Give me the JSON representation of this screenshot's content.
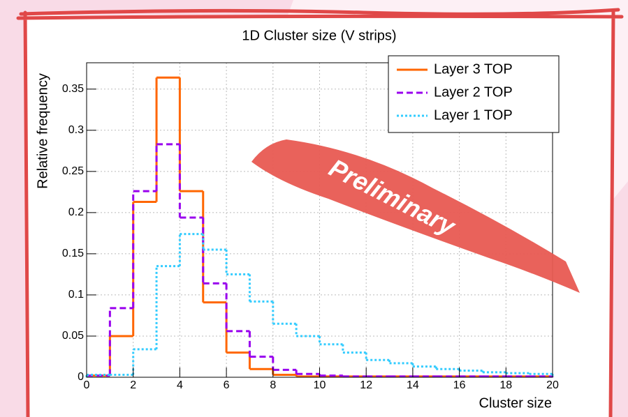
{
  "chart_data": {
    "type": "histogram",
    "title": "1D Cluster size (V strips)",
    "x_label": "Cluster size",
    "y_label": "Relative frequency",
    "annotation": "Preliminary",
    "bins": [
      0,
      1,
      2,
      3,
      4,
      5,
      6,
      7,
      8,
      9,
      10,
      11,
      12,
      13,
      14,
      15,
      16,
      17,
      18,
      19,
      20
    ],
    "series": [
      {
        "name": "Layer 3 TOP",
        "color": "#ff6600",
        "dash": "solid",
        "values": [
          0.002,
          0.05,
          0.213,
          0.364,
          0.226,
          0.091,
          0.03,
          0.01,
          0.003,
          0.001,
          0.001,
          0.001,
          0.001,
          0.001,
          0.001,
          0.001,
          0.001,
          0.001,
          0.001,
          0.001
        ]
      },
      {
        "name": "Layer 2 TOP",
        "color": "#9900ee",
        "dash": "dashed",
        "values": [
          0.002,
          0.084,
          0.226,
          0.283,
          0.194,
          0.114,
          0.056,
          0.025,
          0.009,
          0.004,
          0.002,
          0.001,
          0.001,
          0.001,
          0.001,
          0.001,
          0.001,
          0.001,
          0.001,
          0.001
        ]
      },
      {
        "name": "Layer 1 TOP",
        "color": "#33ccff",
        "dash": "dotted",
        "values": [
          0.003,
          0.003,
          0.034,
          0.135,
          0.174,
          0.155,
          0.125,
          0.092,
          0.065,
          0.05,
          0.04,
          0.03,
          0.021,
          0.017,
          0.013,
          0.01,
          0.008,
          0.006,
          0.005,
          0.004
        ]
      }
    ],
    "xlim": [
      0,
      20
    ],
    "xticks": [
      0,
      2,
      4,
      6,
      8,
      10,
      12,
      14,
      16,
      18,
      20
    ],
    "ylim": [
      0,
      0.382
    ],
    "yticks": [
      0,
      0.05,
      0.1,
      0.15,
      0.2,
      0.25,
      0.3,
      0.35
    ],
    "grid": true,
    "legend": "top-right"
  }
}
